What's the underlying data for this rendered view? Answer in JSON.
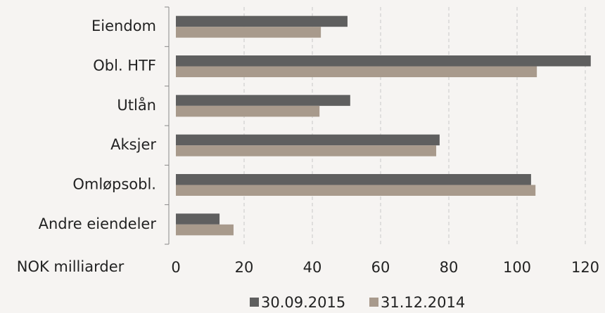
{
  "chart_data": {
    "type": "hbar",
    "categories": [
      "Eiendom",
      "Obl. HTF",
      "Utlån",
      "Aksjer",
      "Omløpsobl.",
      "Andre eiendeler"
    ],
    "series": [
      {
        "name": "30.09.2015",
        "color": "#5f5f5f",
        "values": [
          50.3,
          121.6,
          51.1,
          77.3,
          104.1,
          12.8
        ]
      },
      {
        "name": "31.12.2014",
        "color": "#a89a8c",
        "values": [
          42.5,
          105.8,
          42.1,
          76.3,
          105.4,
          16.9
        ]
      }
    ],
    "x_label": "NOK milliarder",
    "xlim": [
      0,
      120
    ],
    "xticks": [
      0,
      20,
      40,
      60,
      80,
      100,
      120
    ],
    "grid": true
  }
}
